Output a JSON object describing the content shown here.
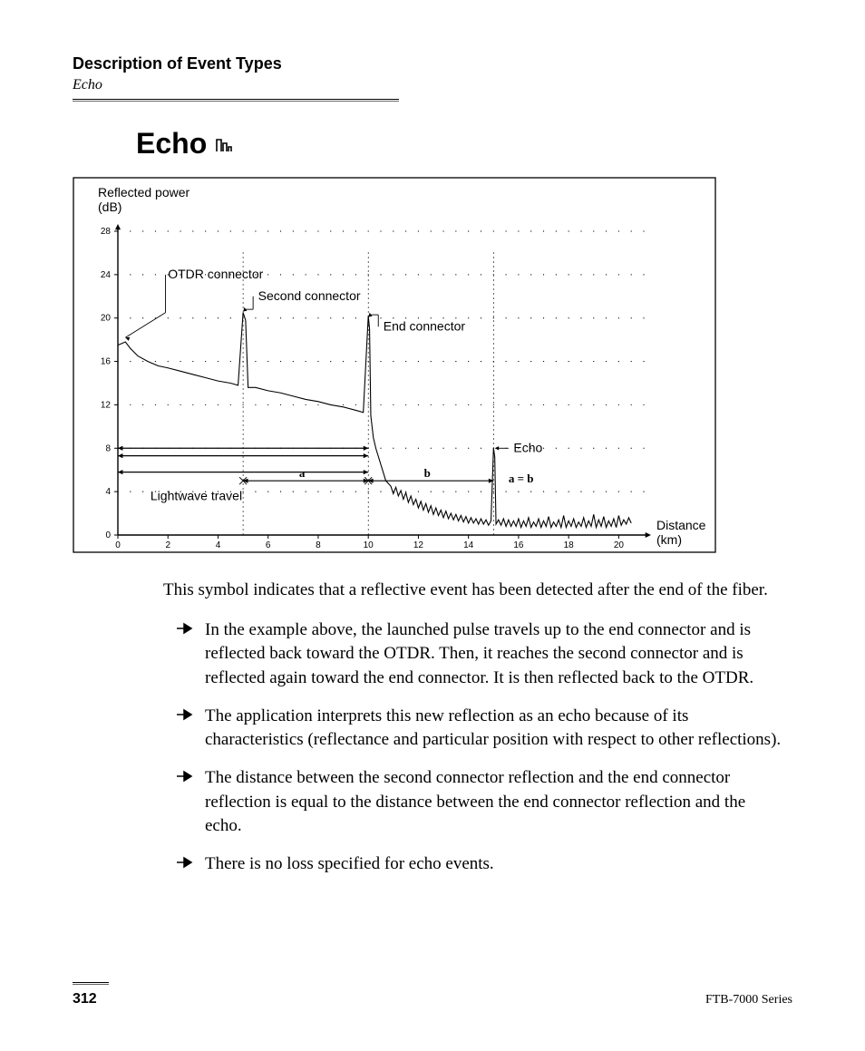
{
  "header": {
    "title": "Description of Event Types",
    "subtitle": "Echo"
  },
  "section": {
    "title": "Echo"
  },
  "chart": {
    "type": "line",
    "y_label_top": "Reflected power",
    "y_label_unit": "(dB)",
    "x_label_top": "Distance",
    "x_label_unit": "(km)",
    "border_color": "#000000",
    "grid_color": "#000000",
    "background_color": "#ffffff",
    "trace_color": "#000000",
    "xlim": [
      0,
      21
    ],
    "ylim": [
      0,
      28
    ],
    "xtick_step": 2,
    "ytick_step": 4,
    "xticks": [
      0,
      2,
      4,
      6,
      8,
      10,
      12,
      14,
      16,
      18,
      20
    ],
    "yticks": [
      0,
      4,
      8,
      12,
      16,
      20,
      24,
      28
    ],
    "annotations": {
      "otdr_connector": "OTDR connector",
      "second_connector": "Second connector",
      "end_connector": "End connector",
      "echo": "Echo",
      "lightwave_travel": "Lightwave travel",
      "a": "a",
      "b": "b",
      "aeqb": "a = b"
    },
    "trace_points": [
      [
        0,
        17.5
      ],
      [
        0.3,
        17.8
      ],
      [
        0.5,
        17.2
      ],
      [
        0.8,
        16.5
      ],
      [
        1.2,
        16.0
      ],
      [
        1.6,
        15.6
      ],
      [
        2.0,
        15.4
      ],
      [
        2.5,
        15.1
      ],
      [
        3.0,
        14.8
      ],
      [
        3.5,
        14.5
      ],
      [
        4.0,
        14.2
      ],
      [
        4.5,
        14.0
      ],
      [
        4.8,
        13.8
      ],
      [
        5.0,
        20.5
      ],
      [
        5.1,
        19.8
      ],
      [
        5.2,
        13.6
      ],
      [
        5.5,
        13.6
      ],
      [
        6.0,
        13.3
      ],
      [
        6.5,
        13.1
      ],
      [
        7.0,
        12.8
      ],
      [
        7.5,
        12.5
      ],
      [
        8.0,
        12.3
      ],
      [
        8.5,
        12.0
      ],
      [
        9.0,
        11.8
      ],
      [
        9.5,
        11.5
      ],
      [
        9.8,
        11.3
      ],
      [
        10.0,
        20.2
      ],
      [
        10.05,
        19.0
      ],
      [
        10.1,
        11.0
      ],
      [
        10.2,
        9.0
      ],
      [
        10.3,
        8.0
      ],
      [
        10.5,
        6.5
      ],
      [
        10.7,
        5.0
      ],
      [
        10.9,
        4.5
      ],
      [
        11.0,
        3.8
      ],
      [
        11.1,
        4.4
      ],
      [
        11.2,
        3.6
      ],
      [
        11.3,
        4.1
      ],
      [
        11.4,
        3.3
      ],
      [
        11.5,
        3.9
      ],
      [
        11.6,
        3.0
      ],
      [
        11.7,
        3.6
      ],
      [
        11.8,
        2.8
      ],
      [
        11.9,
        3.3
      ],
      [
        12.0,
        2.5
      ],
      [
        12.1,
        3.1
      ],
      [
        12.2,
        2.3
      ],
      [
        12.3,
        2.9
      ],
      [
        12.4,
        2.1
      ],
      [
        12.5,
        2.7
      ],
      [
        12.6,
        1.9
      ],
      [
        12.7,
        2.5
      ],
      [
        12.8,
        1.8
      ],
      [
        12.9,
        2.3
      ],
      [
        13.0,
        1.6
      ],
      [
        13.1,
        2.2
      ],
      [
        13.2,
        1.5
      ],
      [
        13.3,
        2.0
      ],
      [
        13.4,
        1.4
      ],
      [
        13.5,
        1.9
      ],
      [
        13.6,
        1.3
      ],
      [
        13.7,
        1.8
      ],
      [
        13.8,
        1.2
      ],
      [
        13.9,
        1.7
      ],
      [
        14.0,
        1.1
      ],
      [
        14.1,
        1.6
      ],
      [
        14.2,
        1.1
      ],
      [
        14.3,
        1.5
      ],
      [
        14.4,
        1.0
      ],
      [
        14.5,
        1.5
      ],
      [
        14.6,
        1.0
      ],
      [
        14.7,
        1.4
      ],
      [
        14.8,
        0.9
      ],
      [
        14.9,
        1.3
      ],
      [
        15.0,
        8.0
      ],
      [
        15.05,
        7.2
      ],
      [
        15.1,
        1.0
      ],
      [
        15.2,
        1.4
      ],
      [
        15.3,
        0.9
      ],
      [
        15.4,
        1.5
      ],
      [
        15.5,
        0.8
      ],
      [
        15.6,
        1.4
      ],
      [
        15.7,
        0.8
      ],
      [
        15.8,
        1.3
      ],
      [
        15.9,
        0.8
      ],
      [
        16.0,
        1.5
      ],
      [
        16.1,
        0.7
      ],
      [
        16.2,
        1.3
      ],
      [
        16.3,
        0.8
      ],
      [
        16.4,
        1.6
      ],
      [
        16.5,
        0.7
      ],
      [
        16.6,
        1.2
      ],
      [
        16.7,
        0.8
      ],
      [
        16.8,
        1.5
      ],
      [
        16.9,
        0.7
      ],
      [
        17.0,
        1.3
      ],
      [
        17.1,
        0.8
      ],
      [
        17.2,
        1.7
      ],
      [
        17.3,
        0.7
      ],
      [
        17.4,
        1.2
      ],
      [
        17.5,
        0.8
      ],
      [
        17.6,
        1.4
      ],
      [
        17.7,
        0.7
      ],
      [
        17.8,
        1.8
      ],
      [
        17.9,
        0.7
      ],
      [
        18.0,
        1.3
      ],
      [
        18.1,
        0.8
      ],
      [
        18.2,
        1.5
      ],
      [
        18.3,
        0.7
      ],
      [
        18.4,
        1.2
      ],
      [
        18.5,
        0.8
      ],
      [
        18.6,
        1.6
      ],
      [
        18.7,
        0.7
      ],
      [
        18.8,
        1.3
      ],
      [
        18.9,
        0.8
      ],
      [
        19.0,
        1.9
      ],
      [
        19.1,
        0.7
      ],
      [
        19.2,
        1.4
      ],
      [
        19.3,
        0.8
      ],
      [
        19.4,
        1.7
      ],
      [
        19.5,
        0.7
      ],
      [
        19.6,
        1.3
      ],
      [
        19.7,
        0.8
      ],
      [
        19.8,
        1.5
      ],
      [
        19.9,
        0.7
      ],
      [
        20.0,
        1.8
      ],
      [
        20.1,
        0.9
      ],
      [
        20.2,
        1.4
      ],
      [
        20.3,
        1.0
      ],
      [
        20.4,
        1.6
      ],
      [
        20.5,
        1.1
      ]
    ]
  },
  "body": {
    "intro": "This symbol indicates that a reflective event has been detected after the end of the fiber.",
    "bullets": [
      "In the example above, the launched pulse travels up to the end connector and is reflected back toward the OTDR. Then, it reaches the second connector and is reflected again toward the end connector. It is then reflected back to the OTDR.",
      "The application interprets this new reflection as an echo because of its characteristics (reflectance and particular position with respect to other reflections).",
      "The distance between the second connector reflection and the end connector reflection is equal to the distance between the end connector reflection and the echo.",
      "There is no loss specified for echo events."
    ]
  },
  "footer": {
    "page": "312",
    "series": "FTB-7000 Series"
  }
}
